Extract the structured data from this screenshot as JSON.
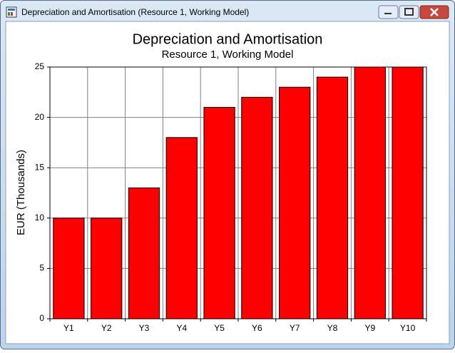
{
  "window": {
    "title": "Depreciation and Amortisation (Resource 1, Working Model)"
  },
  "chart_data": {
    "type": "bar",
    "title": "Depreciation and Amortisation",
    "subtitle": "Resource 1, Working Model",
    "y_label": "EUR  (Thousands)",
    "categories": [
      "Y1",
      "Y2",
      "Y3",
      "Y4",
      "Y5",
      "Y6",
      "Y7",
      "Y8",
      "Y9",
      "Y10"
    ],
    "values": [
      10,
      10,
      13,
      18,
      21,
      22,
      23,
      24,
      25,
      25
    ],
    "color": "#ff0000",
    "ylim": [
      0,
      25
    ],
    "yticks": [
      0,
      5,
      10,
      15,
      20,
      25
    ],
    "grid": true
  }
}
